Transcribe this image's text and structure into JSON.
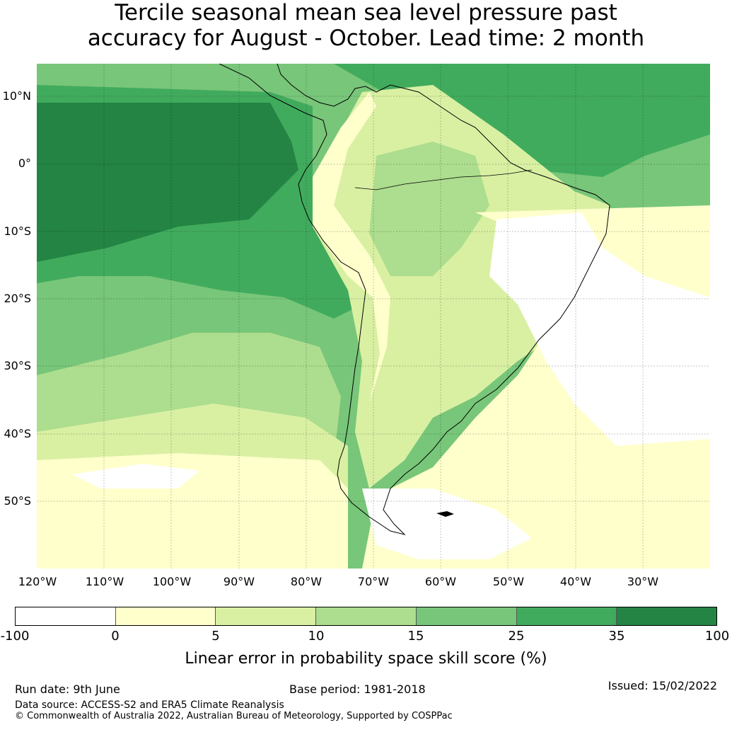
{
  "title_line1": "Tercile seasonal mean sea level pressure past",
  "title_line2": "accuracy for August - October. Lead time: 2 month",
  "map": {
    "lat_labels": [
      "10°N",
      "0°",
      "10°S",
      "20°S",
      "30°S",
      "40°S",
      "50°S"
    ],
    "lon_labels": [
      "120°W",
      "110°W",
      "100°W",
      "90°W",
      "80°W",
      "70°W",
      "60°W",
      "50°W",
      "40°W",
      "30°W"
    ]
  },
  "legend": {
    "bins": [
      {
        "from": -100,
        "to": 0,
        "color": "#ffffff"
      },
      {
        "from": 0,
        "to": 5,
        "color": "#ffffcc"
      },
      {
        "from": 5,
        "to": 10,
        "color": "#d9f0a3"
      },
      {
        "from": 10,
        "to": 15,
        "color": "#addd8e"
      },
      {
        "from": 15,
        "to": 25,
        "color": "#78c679"
      },
      {
        "from": 25,
        "to": 35,
        "color": "#41ab5d"
      },
      {
        "from": 35,
        "to": 100,
        "color": "#238443"
      }
    ],
    "ticks": [
      "-100",
      "0",
      "5",
      "10",
      "15",
      "25",
      "35",
      "100"
    ],
    "label": "Linear error in probability space skill score (%)"
  },
  "footer": {
    "run_date": "Run date: 9th June",
    "base_period": "Base period: 1981-2018",
    "issued": "Issued: 15/02/2022",
    "data_source": "Data source: ACCESS-S2 and ERA5 Climate Reanalysis",
    "copyright": "© Commonwealth of Australia 2022, Australian Bureau of Meteorology, Supported by COSPPac"
  }
}
